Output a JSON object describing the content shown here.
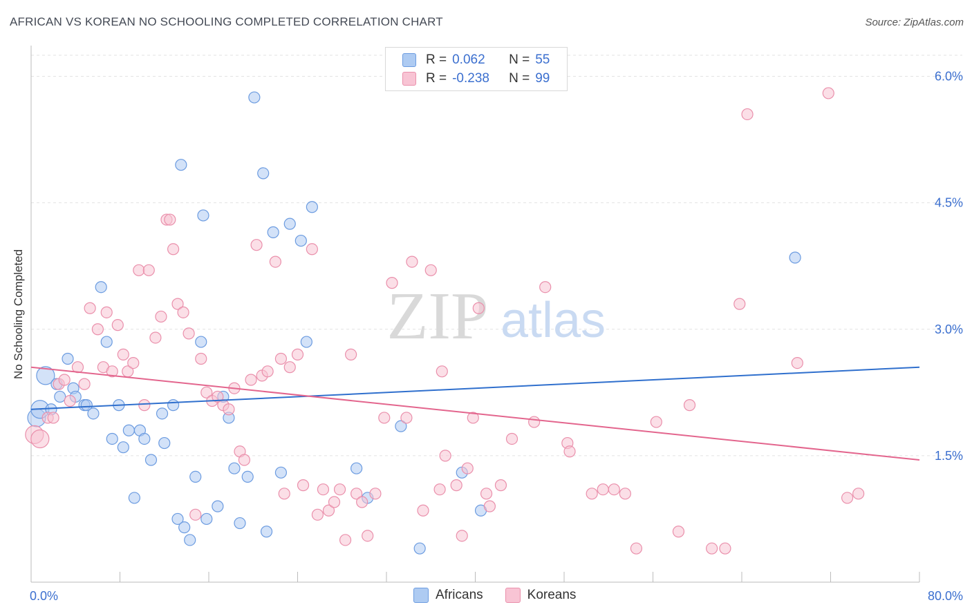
{
  "header": {
    "title": "AFRICAN VS KOREAN NO SCHOOLING COMPLETED CORRELATION CHART",
    "source": "Source: ZipAtlas.com"
  },
  "legend": {
    "rows": [
      {
        "r_label": "R =",
        "r_value": "0.062",
        "n_label": "N =",
        "n_value": "55",
        "color": "#aecbf2",
        "border": "#6b9be0"
      },
      {
        "r_label": "R =",
        "r_value": "-0.238",
        "n_label": "N =",
        "n_value": "99",
        "color": "#f8c4d4",
        "border": "#ea8fab"
      }
    ]
  },
  "bottom_legend": {
    "africans": "Africans",
    "koreans": "Koreans"
  },
  "watermark": {
    "zip": "ZIP",
    "atlas": "atlas"
  },
  "chart_data": {
    "type": "scatter",
    "title": "AFRICAN VS KOREAN NO SCHOOLING COMPLETED CORRELATION CHART",
    "ylabel": "No Schooling Completed",
    "xlabel": "",
    "xlim": [
      0,
      80
    ],
    "ylim": [
      0,
      6.25
    ],
    "x_tick_labels": [
      "0.0%",
      "80.0%"
    ],
    "y_ticks": [
      1.5,
      3.0,
      4.5,
      6.0
    ],
    "y_tick_labels": [
      "1.5%",
      "3.0%",
      "4.5%",
      "6.0%"
    ],
    "grid": true,
    "series": [
      {
        "name": "Africans",
        "color": "#6b9be0",
        "fill": "#aecbf2",
        "trend": {
          "x": [
            0,
            80
          ],
          "y": [
            2.05,
            2.55
          ],
          "color": "#2f6fcd"
        },
        "points": [
          [
            0.5,
            1.95
          ],
          [
            0.8,
            2.05
          ],
          [
            1.3,
            2.45
          ],
          [
            1.8,
            2.05
          ],
          [
            2.3,
            2.35
          ],
          [
            2.6,
            2.2
          ],
          [
            3.3,
            2.65
          ],
          [
            3.8,
            2.3
          ],
          [
            4.0,
            2.2
          ],
          [
            4.8,
            2.1
          ],
          [
            5.0,
            2.1
          ],
          [
            5.6,
            2.0
          ],
          [
            6.3,
            3.5
          ],
          [
            6.8,
            2.85
          ],
          [
            7.3,
            1.7
          ],
          [
            7.9,
            2.1
          ],
          [
            8.3,
            1.6
          ],
          [
            8.8,
            1.8
          ],
          [
            9.3,
            1.0
          ],
          [
            9.8,
            1.8
          ],
          [
            10.2,
            1.7
          ],
          [
            10.8,
            1.45
          ],
          [
            11.8,
            2.0
          ],
          [
            12.0,
            1.65
          ],
          [
            12.8,
            2.1
          ],
          [
            13.2,
            0.75
          ],
          [
            13.5,
            4.95
          ],
          [
            13.8,
            0.65
          ],
          [
            14.3,
            0.5
          ],
          [
            14.8,
            1.25
          ],
          [
            15.3,
            2.85
          ],
          [
            15.5,
            4.35
          ],
          [
            15.8,
            0.75
          ],
          [
            16.8,
            0.9
          ],
          [
            17.3,
            2.2
          ],
          [
            17.8,
            1.95
          ],
          [
            18.3,
            1.35
          ],
          [
            18.8,
            0.7
          ],
          [
            19.5,
            1.25
          ],
          [
            20.1,
            5.75
          ],
          [
            20.9,
            4.85
          ],
          [
            21.2,
            0.6
          ],
          [
            21.8,
            4.15
          ],
          [
            22.5,
            1.3
          ],
          [
            23.3,
            4.25
          ],
          [
            24.3,
            4.05
          ],
          [
            24.8,
            2.85
          ],
          [
            25.3,
            4.45
          ],
          [
            29.3,
            1.35
          ],
          [
            30.3,
            1.0
          ],
          [
            33.3,
            1.85
          ],
          [
            35.0,
            0.4
          ],
          [
            38.8,
            1.3
          ],
          [
            40.5,
            0.85
          ],
          [
            68.8,
            3.85
          ]
        ]
      },
      {
        "name": "Koreans",
        "color": "#ea8fab",
        "fill": "#f8c4d4",
        "trend": {
          "x": [
            0,
            80
          ],
          "y": [
            2.55,
            1.45
          ],
          "color": "#e3658d"
        },
        "points": [
          [
            0.3,
            1.75
          ],
          [
            0.8,
            1.7
          ],
          [
            1.5,
            1.95
          ],
          [
            2.0,
            1.95
          ],
          [
            2.5,
            2.35
          ],
          [
            3.0,
            2.4
          ],
          [
            3.5,
            2.15
          ],
          [
            4.2,
            2.55
          ],
          [
            4.8,
            2.35
          ],
          [
            5.3,
            3.25
          ],
          [
            6.0,
            3.0
          ],
          [
            6.5,
            2.55
          ],
          [
            6.8,
            3.2
          ],
          [
            7.3,
            2.5
          ],
          [
            7.8,
            3.05
          ],
          [
            8.3,
            2.7
          ],
          [
            8.7,
            2.5
          ],
          [
            9.2,
            2.6
          ],
          [
            9.7,
            3.7
          ],
          [
            10.2,
            2.1
          ],
          [
            10.6,
            3.7
          ],
          [
            11.2,
            2.9
          ],
          [
            11.7,
            3.15
          ],
          [
            12.2,
            4.3
          ],
          [
            12.5,
            4.3
          ],
          [
            12.8,
            3.95
          ],
          [
            13.2,
            3.3
          ],
          [
            13.7,
            3.2
          ],
          [
            14.2,
            2.95
          ],
          [
            14.8,
            0.8
          ],
          [
            15.3,
            2.65
          ],
          [
            15.8,
            2.25
          ],
          [
            16.3,
            2.15
          ],
          [
            16.8,
            2.2
          ],
          [
            17.3,
            2.1
          ],
          [
            17.8,
            2.05
          ],
          [
            18.3,
            2.3
          ],
          [
            18.8,
            1.55
          ],
          [
            19.2,
            1.45
          ],
          [
            19.8,
            2.4
          ],
          [
            20.3,
            4.0
          ],
          [
            20.8,
            2.45
          ],
          [
            21.3,
            2.5
          ],
          [
            22.0,
            3.8
          ],
          [
            22.5,
            2.65
          ],
          [
            22.8,
            1.05
          ],
          [
            23.3,
            2.55
          ],
          [
            24.0,
            2.7
          ],
          [
            24.5,
            1.15
          ],
          [
            25.3,
            3.95
          ],
          [
            25.8,
            0.8
          ],
          [
            26.3,
            1.1
          ],
          [
            26.8,
            0.85
          ],
          [
            27.3,
            0.95
          ],
          [
            27.8,
            1.1
          ],
          [
            28.3,
            0.5
          ],
          [
            28.8,
            2.7
          ],
          [
            29.3,
            1.05
          ],
          [
            29.8,
            0.95
          ],
          [
            30.3,
            0.55
          ],
          [
            31.0,
            1.05
          ],
          [
            31.8,
            1.95
          ],
          [
            32.5,
            3.55
          ],
          [
            33.8,
            1.95
          ],
          [
            34.3,
            3.8
          ],
          [
            35.3,
            0.85
          ],
          [
            36.0,
            3.7
          ],
          [
            36.8,
            1.1
          ],
          [
            37.0,
            2.5
          ],
          [
            37.3,
            1.5
          ],
          [
            38.3,
            1.15
          ],
          [
            38.8,
            0.55
          ],
          [
            39.3,
            1.35
          ],
          [
            39.8,
            1.95
          ],
          [
            40.3,
            3.25
          ],
          [
            41.0,
            1.05
          ],
          [
            41.3,
            0.9
          ],
          [
            42.3,
            1.15
          ],
          [
            43.3,
            1.7
          ],
          [
            45.3,
            1.9
          ],
          [
            46.3,
            3.5
          ],
          [
            48.3,
            1.65
          ],
          [
            48.5,
            1.55
          ],
          [
            50.5,
            1.05
          ],
          [
            51.5,
            1.1
          ],
          [
            52.5,
            1.1
          ],
          [
            53.5,
            1.05
          ],
          [
            54.5,
            0.4
          ],
          [
            56.3,
            1.9
          ],
          [
            58.3,
            0.6
          ],
          [
            59.3,
            2.1
          ],
          [
            61.3,
            0.4
          ],
          [
            62.5,
            0.4
          ],
          [
            63.8,
            3.3
          ],
          [
            64.5,
            5.55
          ],
          [
            69.0,
            2.6
          ],
          [
            71.8,
            5.8
          ],
          [
            73.5,
            1.0
          ],
          [
            74.5,
            1.05
          ]
        ]
      }
    ]
  }
}
